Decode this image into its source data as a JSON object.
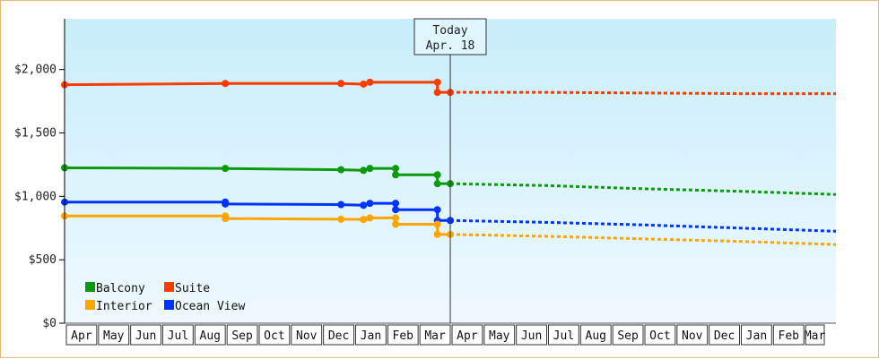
{
  "chart_data": {
    "type": "line",
    "title": "",
    "xlabel": "",
    "ylabel": "",
    "ylim": [
      0,
      2400
    ],
    "y_ticks": [
      {
        "value": 0,
        "label": "$0"
      },
      {
        "value": 500,
        "label": "$500"
      },
      {
        "value": 1000,
        "label": "$1,000"
      },
      {
        "value": 1500,
        "label": "$1,500"
      },
      {
        "value": 2000,
        "label": "$2,000"
      }
    ],
    "x_ticks": [
      "Apr",
      "May",
      "Jun",
      "Jul",
      "Aug",
      "Sep",
      "Oct",
      "Nov",
      "Dec",
      "Jan",
      "Feb",
      "Mar",
      "Apr",
      "May",
      "Jun",
      "Jul",
      "Aug",
      "Sep",
      "Oct",
      "Nov",
      "Dec",
      "Jan",
      "Feb",
      "Mar"
    ],
    "x_range": [
      0,
      24
    ],
    "today": {
      "line1": "Today",
      "line2": "Apr. 18",
      "x": 12.0
    },
    "background": {
      "top": "#c8eefa",
      "bottom": "#eef9fe"
    },
    "grid": false,
    "legend_position": "bottom-left",
    "series": [
      {
        "name": "Suite",
        "color": "#ff3b00",
        "points": [
          [
            0,
            1880
          ],
          [
            5,
            1890
          ],
          [
            8.6,
            1890
          ],
          [
            9.3,
            1885
          ],
          [
            9.5,
            1900
          ],
          [
            11.6,
            1900
          ],
          [
            11.6,
            1820
          ],
          [
            12.0,
            1820
          ]
        ],
        "forecast": [
          [
            12.0,
            1820
          ],
          [
            15,
            1820
          ],
          [
            18,
            1815
          ],
          [
            21,
            1810
          ],
          [
            24,
            1810
          ]
        ]
      },
      {
        "name": "Balcony",
        "color": "#0c9a0c",
        "points": [
          [
            0,
            1225
          ],
          [
            5,
            1220
          ],
          [
            8.6,
            1210
          ],
          [
            9.3,
            1205
          ],
          [
            9.5,
            1220
          ],
          [
            10.3,
            1220
          ],
          [
            10.3,
            1170
          ],
          [
            11.6,
            1170
          ],
          [
            11.6,
            1100
          ],
          [
            12.0,
            1100
          ]
        ],
        "forecast": [
          [
            12.0,
            1100
          ],
          [
            15,
            1085
          ],
          [
            18,
            1060
          ],
          [
            21,
            1040
          ],
          [
            24,
            1015
          ]
        ]
      },
      {
        "name": "Ocean View",
        "color": "#0033ff",
        "points": [
          [
            0,
            955
          ],
          [
            5,
            955
          ],
          [
            5,
            940
          ],
          [
            8.6,
            935
          ],
          [
            9.3,
            930
          ],
          [
            9.5,
            945
          ],
          [
            10.3,
            945
          ],
          [
            10.3,
            895
          ],
          [
            11.6,
            895
          ],
          [
            11.6,
            810
          ],
          [
            12.0,
            810
          ]
        ],
        "forecast": [
          [
            12.0,
            810
          ],
          [
            15,
            795
          ],
          [
            18,
            775
          ],
          [
            21,
            750
          ],
          [
            24,
            725
          ]
        ]
      },
      {
        "name": "Interior",
        "color": "#ffa500",
        "points": [
          [
            0,
            845
          ],
          [
            5,
            845
          ],
          [
            5,
            825
          ],
          [
            8.6,
            820
          ],
          [
            9.3,
            818
          ],
          [
            9.5,
            830
          ],
          [
            10.3,
            830
          ],
          [
            10.3,
            780
          ],
          [
            11.6,
            780
          ],
          [
            11.6,
            700
          ],
          [
            12.0,
            700
          ]
        ],
        "forecast": [
          [
            12.0,
            700
          ],
          [
            15,
            685
          ],
          [
            18,
            665
          ],
          [
            21,
            645
          ],
          [
            24,
            620
          ]
        ]
      }
    ],
    "legend": [
      {
        "name": "Balcony",
        "color": "#0c9a0c"
      },
      {
        "name": "Suite",
        "color": "#ff3b00"
      },
      {
        "name": "Interior",
        "color": "#ffa500"
      },
      {
        "name": "Ocean View",
        "color": "#0033ff"
      }
    ]
  }
}
